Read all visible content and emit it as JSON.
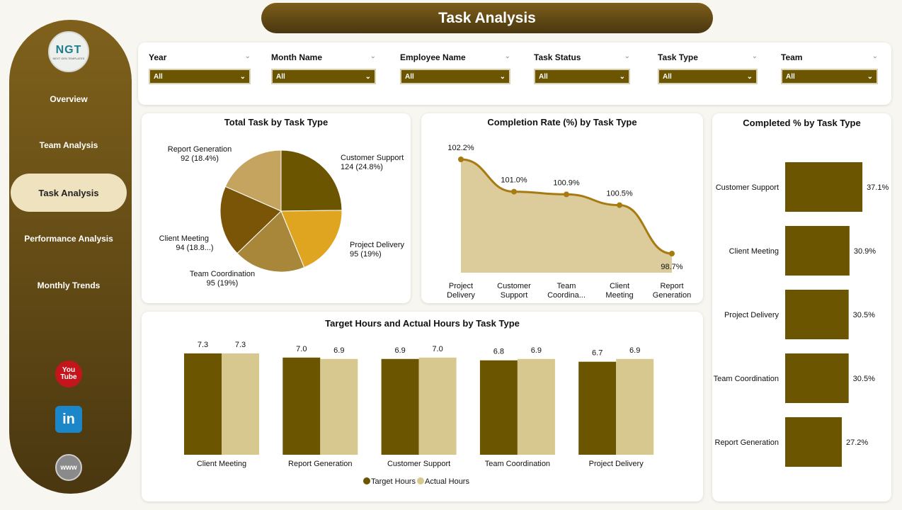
{
  "header": {
    "title": "Task Analysis"
  },
  "sidebar": {
    "logo_text": "NGT",
    "logo_sub": "NEXT GEN TEMPLATES",
    "items": [
      {
        "label": "Overview"
      },
      {
        "label": "Team Analysis"
      },
      {
        "label": "Task Analysis",
        "active": true
      },
      {
        "label": "Performance Analysis"
      },
      {
        "label": "Monthly Trends"
      }
    ],
    "social": [
      {
        "icon": "youtube-icon",
        "label": "You Tube"
      },
      {
        "icon": "linkedin-icon",
        "label": "in"
      },
      {
        "icon": "www-icon",
        "label": "www"
      }
    ]
  },
  "filters": [
    {
      "label": "Year",
      "value": "All"
    },
    {
      "label": "Month Name",
      "value": "All"
    },
    {
      "label": "Employee Name",
      "value": "All"
    },
    {
      "label": "Task Status",
      "value": "All"
    },
    {
      "label": "Task Type",
      "value": "All"
    },
    {
      "label": "Team",
      "value": "All"
    }
  ],
  "colors": {
    "dark": "#6b5500",
    "light": "#d6c88e"
  },
  "chart_data": [
    {
      "type": "pie",
      "title": "Total Task by Task Type",
      "categories": [
        "Customer Support",
        "Project Delivery",
        "Team Coordination",
        "Client Meeting",
        "Report Generation"
      ],
      "values": [
        124,
        95,
        95,
        94,
        92
      ],
      "labels": [
        "124 (24.8%)",
        "95 (19%)",
        "95 (19%)",
        "94 (18.8...)",
        "92 (18.4%)"
      ],
      "colors": [
        "#6b5500",
        "#e0a520",
        "#a8863a",
        "#7a5508",
        "#c4a45e"
      ]
    },
    {
      "type": "area",
      "title": "Completion Rate (%) by Task Type",
      "categories": [
        "Project Delivery",
        "Customer Support",
        "Team Coordina...",
        "Client Meeting",
        "Report Generation"
      ],
      "values": [
        102.2,
        101.0,
        100.9,
        100.5,
        98.7
      ],
      "labels": [
        "102.2%",
        "101.0%",
        "100.9%",
        "100.5%",
        "98.7%"
      ]
    },
    {
      "type": "bar",
      "title": "Completed % by Task Type",
      "orientation": "horizontal",
      "categories": [
        "Customer Support",
        "Client Meeting",
        "Project Delivery",
        "Team Coordination",
        "Report Generation"
      ],
      "values": [
        37.1,
        30.9,
        30.5,
        30.5,
        27.2
      ],
      "labels": [
        "37.1%",
        "30.9%",
        "30.5%",
        "30.5%",
        "27.2%"
      ]
    },
    {
      "type": "bar",
      "title": "Target Hours and Actual Hours by Task Type",
      "categories": [
        "Client Meeting",
        "Report Generation",
        "Customer Support",
        "Team Coordination",
        "Project Delivery"
      ],
      "series": [
        {
          "name": "Target Hours",
          "values": [
            7.3,
            7.0,
            6.9,
            6.8,
            6.7
          ]
        },
        {
          "name": "Actual Hours",
          "values": [
            7.3,
            6.9,
            7.0,
            6.9,
            6.9
          ]
        }
      ],
      "legend": "bottom"
    }
  ]
}
